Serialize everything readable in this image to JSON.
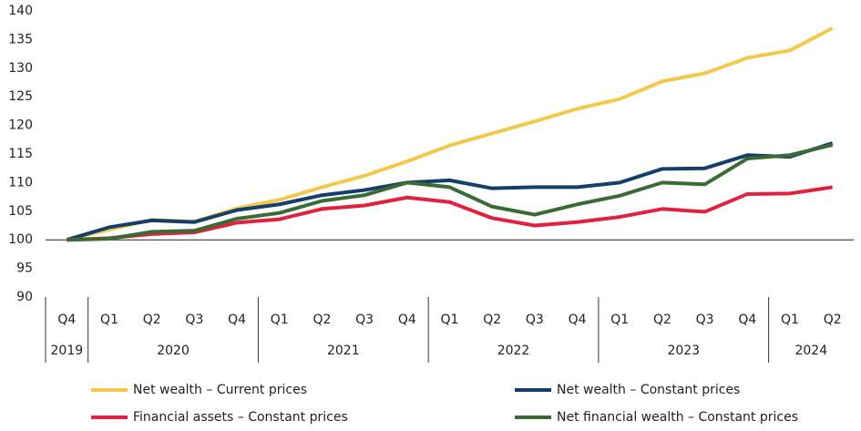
{
  "chart_data": {
    "type": "line",
    "categories": [
      "Q4",
      "Q1",
      "Q2",
      "Q3",
      "Q4",
      "Q1",
      "Q2",
      "Q3",
      "Q4",
      "Q1",
      "Q2",
      "Q3",
      "Q4",
      "Q1",
      "Q2",
      "Q3",
      "Q4",
      "Q1",
      "Q2"
    ],
    "year_labels": [
      "2019",
      "2020",
      null,
      null,
      null,
      "2021",
      null,
      null,
      null,
      "2022",
      null,
      null,
      null,
      "2023",
      null,
      null,
      null,
      "2024",
      null
    ],
    "series": [
      {
        "name": "Net wealth – Current prices",
        "color": "#f2c94c",
        "values": [
          100,
          101.8,
          103.5,
          103.2,
          105.5,
          107,
          109.2,
          111.2,
          113.7,
          116.5,
          118.6,
          120.7,
          122.9,
          124.6,
          127.7,
          129.1,
          131.8,
          133.1,
          137
        ]
      },
      {
        "name": "Net wealth – Constant prices",
        "color": "#153f6b",
        "values": [
          100,
          102.2,
          103.4,
          103.1,
          105.2,
          106.2,
          107.8,
          108.7,
          110,
          110.4,
          109,
          109.2,
          109.2,
          110,
          112.4,
          112.5,
          114.8,
          114.5,
          116.9
        ]
      },
      {
        "name": "Financial assets – Constant prices",
        "color": "#e0223f",
        "values": [
          100,
          100.3,
          101,
          101.3,
          103,
          103.6,
          105.4,
          106,
          107.4,
          106.6,
          103.8,
          102.5,
          103.1,
          104,
          105.4,
          104.9,
          108,
          108.1,
          109.2
        ]
      },
      {
        "name": "Net financial wealth – Constant prices",
        "color": "#3a6b35",
        "values": [
          100,
          100.2,
          101.4,
          101.6,
          103.7,
          104.7,
          106.8,
          107.8,
          110,
          109.2,
          105.8,
          104.4,
          106.2,
          107.7,
          110,
          109.7,
          114.2,
          114.8,
          116.6
        ]
      }
    ],
    "ylim": [
      90,
      140
    ],
    "yticks": [
      90,
      95,
      100,
      105,
      110,
      115,
      120,
      125,
      130,
      135,
      140
    ],
    "x_axis_at": 100,
    "grid": false
  }
}
